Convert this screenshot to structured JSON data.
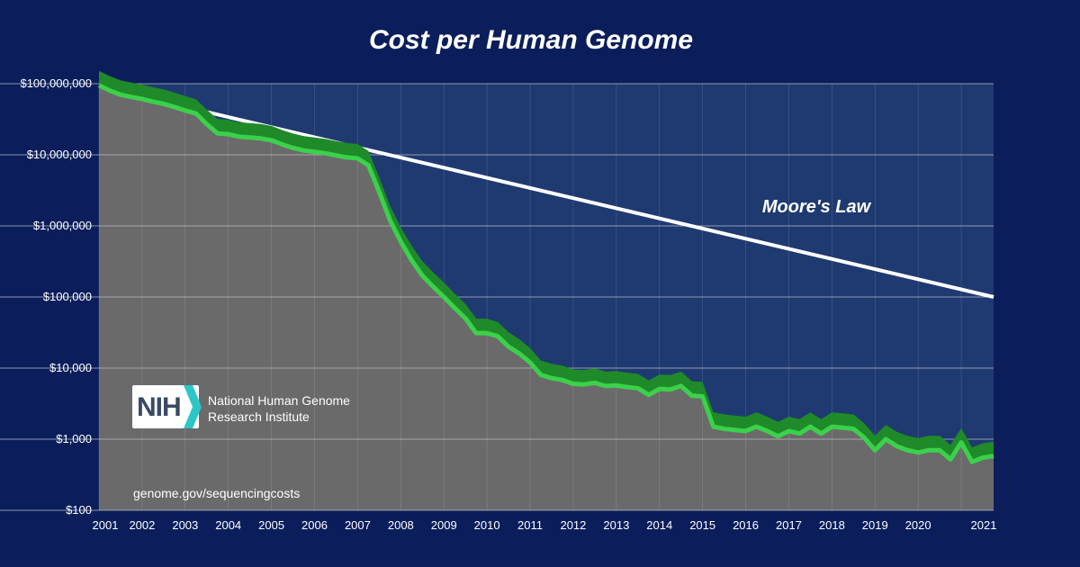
{
  "chart_data": {
    "type": "area",
    "title": "Cost per Human Genome",
    "x_ticks": [
      "2001",
      "2002",
      "2003",
      "2004",
      "2005",
      "2006",
      "2007",
      "2008",
      "2009",
      "2010",
      "2011",
      "2012",
      "2013",
      "2014",
      "2015",
      "2016",
      "2017",
      "2018",
      "2019",
      "2020",
      "2021"
    ],
    "y_ticks": [
      "$100",
      "$1,000",
      "$10,000",
      "$100,000",
      "$1,000,000",
      "$10,000,000",
      "$100,000,000"
    ],
    "y_scale": "log",
    "ylim": [
      100,
      100000000
    ],
    "xlim": [
      2001.0,
      2021.75
    ],
    "grid": true,
    "series": [
      {
        "name": "",
        "color": "#3bd14a",
        "x": [
          2001.0,
          2001.25,
          2001.5,
          2001.75,
          2002.0,
          2002.25,
          2002.5,
          2002.75,
          2003.0,
          2003.25,
          2003.5,
          2003.75,
          2004.0,
          2004.25,
          2004.5,
          2004.75,
          2005.0,
          2005.25,
          2005.5,
          2005.75,
          2006.0,
          2006.25,
          2006.5,
          2006.75,
          2007.0,
          2007.25,
          2007.5,
          2007.75,
          2008.0,
          2008.25,
          2008.5,
          2008.75,
          2009.0,
          2009.25,
          2009.5,
          2009.75,
          2010.0,
          2010.25,
          2010.5,
          2010.75,
          2011.0,
          2011.25,
          2011.5,
          2011.75,
          2012.0,
          2012.25,
          2012.5,
          2012.75,
          2013.0,
          2013.25,
          2013.5,
          2013.75,
          2014.0,
          2014.25,
          2014.5,
          2014.75,
          2015.0,
          2015.25,
          2015.5,
          2015.75,
          2016.0,
          2016.25,
          2016.5,
          2016.75,
          2017.0,
          2017.25,
          2017.5,
          2017.75,
          2018.0,
          2018.25,
          2018.5,
          2018.75,
          2019.0,
          2019.25,
          2019.5,
          2019.75,
          2020.0,
          2020.25,
          2020.5,
          2020.75,
          2021.0,
          2021.25,
          2021.5,
          2021.75
        ],
        "values": [
          95000000,
          80000000,
          70000000,
          65000000,
          61000000,
          56000000,
          52000000,
          47000000,
          42000000,
          38000000,
          27000000,
          20000000,
          19500000,
          18000000,
          17500000,
          17000000,
          16000000,
          14000000,
          12500000,
          11500000,
          11000000,
          10500000,
          9800000,
          9200000,
          8900000,
          7100000,
          3000000,
          1200000,
          600000,
          330000,
          200000,
          140000,
          100000,
          70000,
          50000,
          31000,
          31000,
          28000,
          20000,
          16000,
          12000,
          8000,
          7200,
          6800,
          6000,
          5900,
          6200,
          5600,
          5700,
          5400,
          5200,
          4200,
          5100,
          5000,
          5600,
          4100,
          4000,
          1500,
          1400,
          1350,
          1300,
          1500,
          1300,
          1100,
          1300,
          1200,
          1500,
          1200,
          1500,
          1450,
          1400,
          1050,
          700,
          1000,
          800,
          700,
          650,
          700,
          700,
          520,
          900,
          480,
          550,
          580
        ]
      },
      {
        "name": "Moore's Law",
        "color": "#ffffff",
        "x": [
          2003.5,
          2021.75
        ],
        "values": [
          40000000,
          100000
        ]
      }
    ]
  },
  "logo": {
    "text": "NIH",
    "name": "National Human Genome Research Institute"
  },
  "source": "genome.gov/sequencingcosts",
  "colors": {
    "background": "#0b1e5b",
    "plot_area": "#1f3a70",
    "under_curve": "#6a6a6a",
    "curve": "#3bd14a",
    "curve_band": "#1f8a2a"
  }
}
